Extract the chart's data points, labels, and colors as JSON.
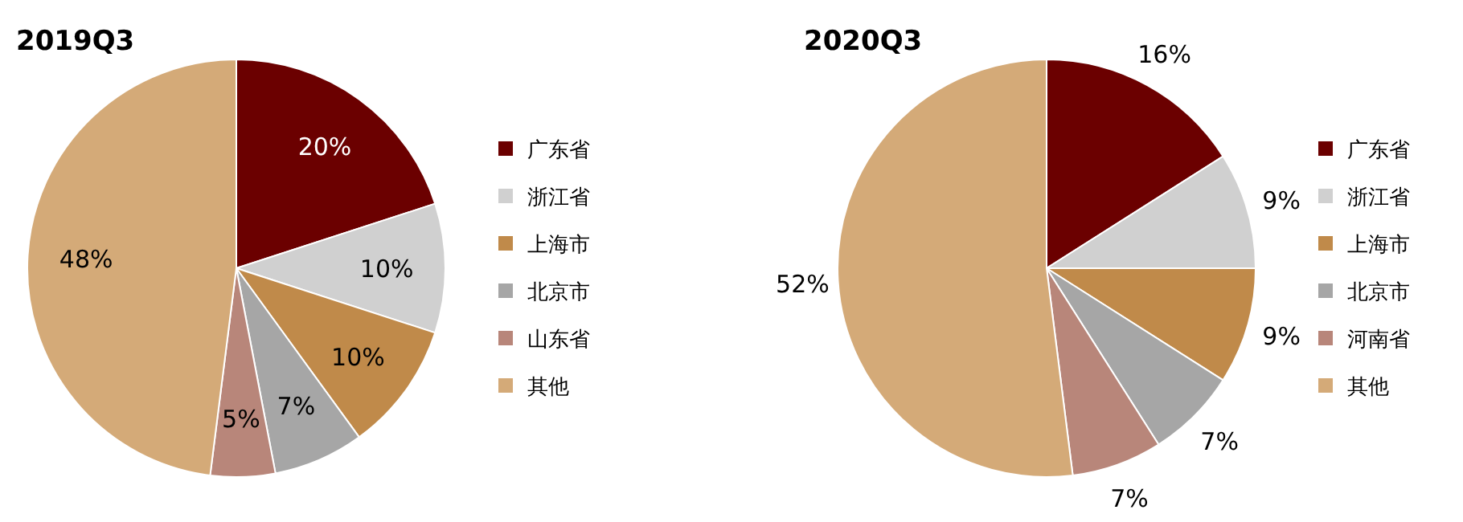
{
  "chart_data": [
    {
      "type": "pie",
      "title": "2019Q3",
      "categories": [
        "广东省",
        "浙江省",
        "上海市",
        "北京市",
        "山东省",
        "其他"
      ],
      "values": [
        20,
        10,
        10,
        7,
        5,
        48
      ],
      "value_labels": [
        "20%",
        "10%",
        "10%",
        "7%",
        "5%",
        "48%"
      ],
      "colors": [
        "#6b0000",
        "#d0d0d0",
        "#c08a4a",
        "#a6a6a6",
        "#b8867a",
        "#d4aa78"
      ],
      "legend": "right"
    },
    {
      "type": "pie",
      "title": "2020Q3",
      "categories": [
        "广东省",
        "浙江省",
        "上海市",
        "北京市",
        "河南省",
        "其他"
      ],
      "values": [
        16,
        9,
        9,
        7,
        7,
        52
      ],
      "value_labels": [
        "16%",
        "9%",
        "9%",
        "7%",
        "7%",
        "52%"
      ],
      "colors": [
        "#6b0000",
        "#d0d0d0",
        "#c08a4a",
        "#a6a6a6",
        "#b8867a",
        "#d4aa78"
      ],
      "legend": "right"
    }
  ]
}
